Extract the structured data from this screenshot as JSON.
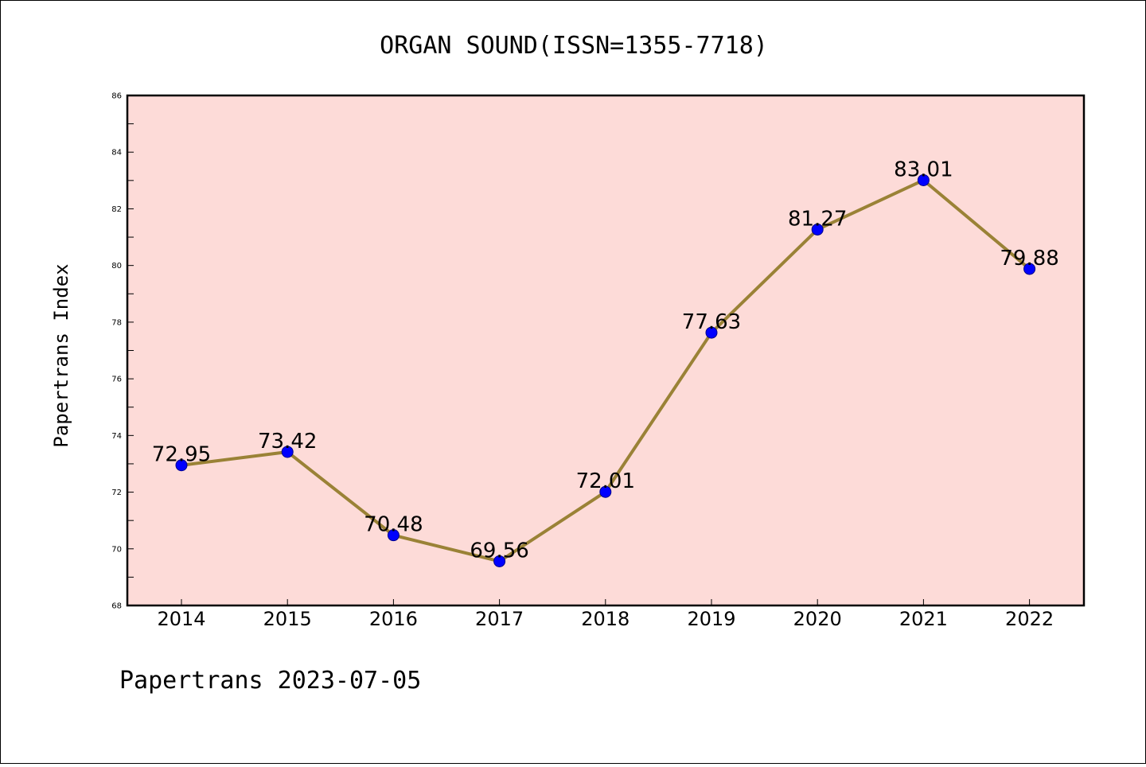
{
  "chart_data": {
    "type": "line",
    "title": "ORGAN SOUND(ISSN=1355-7718)",
    "xlabel": "",
    "ylabel": "Papertrans Index",
    "categories": [
      "2014",
      "2015",
      "2016",
      "2017",
      "2018",
      "2019",
      "2020",
      "2021",
      "2022"
    ],
    "series": [
      {
        "values": [
          72.95,
          73.42,
          70.48,
          69.56,
          72.01,
          77.63,
          81.27,
          83.01,
          79.88
        ],
        "labels": [
          "72.95",
          "73.42",
          "70.48",
          "69.56",
          "72.01",
          "77.63",
          "81.27",
          "83.01",
          "79.88"
        ]
      }
    ],
    "ylim": [
      68,
      86
    ],
    "yticks": [
      "68",
      "70",
      "72",
      "74",
      "76",
      "78",
      "80",
      "82",
      "84",
      "86"
    ],
    "grid": false,
    "legend": "none"
  },
  "footer": "Papertrans 2023-07-05",
  "colors": {
    "plot_background": "#fddbd8",
    "line": "#9a8236",
    "marker": "#0000ff"
  }
}
